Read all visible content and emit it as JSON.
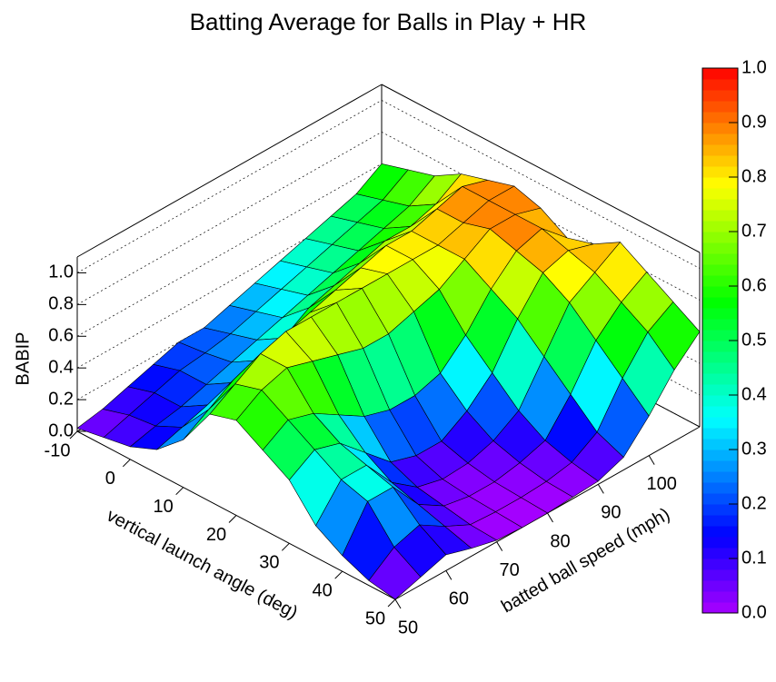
{
  "chart_data": {
    "type": "surface",
    "title": "Batting Average for Balls in Play + HR",
    "xlabel": "vertical launch angle (deg)",
    "ylabel": "batted ball speed (mph)",
    "zlabel": "BABIP",
    "x": [
      -10,
      -5,
      0,
      5,
      10,
      15,
      20,
      25,
      30,
      35,
      40,
      45,
      50
    ],
    "y": [
      50,
      55,
      60,
      65,
      70,
      75,
      80,
      85,
      90,
      95,
      100,
      105,
      110
    ],
    "z": [
      [
        0.02,
        0.05,
        0.1,
        0.15,
        0.2,
        0.2,
        0.25,
        0.3,
        0.35,
        0.4,
        0.45,
        0.5,
        0.6
      ],
      [
        0.05,
        0.1,
        0.15,
        0.2,
        0.22,
        0.25,
        0.3,
        0.35,
        0.4,
        0.45,
        0.5,
        0.55,
        0.65
      ],
      [
        0.08,
        0.12,
        0.15,
        0.2,
        0.25,
        0.3,
        0.35,
        0.4,
        0.45,
        0.5,
        0.55,
        0.6,
        0.7
      ],
      [
        0.15,
        0.2,
        0.25,
        0.3,
        0.35,
        0.4,
        0.5,
        0.55,
        0.6,
        0.65,
        0.65,
        0.7,
        0.8
      ],
      [
        0.3,
        0.4,
        0.5,
        0.55,
        0.6,
        0.65,
        0.7,
        0.75,
        0.8,
        0.8,
        0.85,
        0.9,
        0.85
      ],
      [
        0.55,
        0.65,
        0.75,
        0.8,
        0.8,
        0.8,
        0.8,
        0.8,
        0.8,
        0.8,
        0.85,
        0.9,
        0.9
      ],
      [
        0.6,
        0.7,
        0.75,
        0.7,
        0.65,
        0.6,
        0.6,
        0.65,
        0.7,
        0.8,
        0.9,
        0.9,
        0.85
      ],
      [
        0.5,
        0.6,
        0.55,
        0.45,
        0.35,
        0.3,
        0.3,
        0.35,
        0.5,
        0.7,
        0.85,
        0.9,
        0.75
      ],
      [
        0.4,
        0.5,
        0.45,
        0.3,
        0.15,
        0.1,
        0.1,
        0.2,
        0.35,
        0.6,
        0.8,
        0.85,
        0.8
      ],
      [
        0.2,
        0.4,
        0.4,
        0.2,
        0.08,
        0.04,
        0.05,
        0.1,
        0.2,
        0.45,
        0.7,
        0.8,
        0.9
      ],
      [
        0.1,
        0.35,
        0.35,
        0.15,
        0.05,
        0.02,
        0.02,
        0.05,
        0.1,
        0.3,
        0.55,
        0.7,
        0.8
      ],
      [
        0.03,
        0.15,
        0.2,
        0.1,
        0.02,
        0.01,
        0.01,
        0.02,
        0.05,
        0.15,
        0.4,
        0.6,
        0.7
      ],
      [
        0.0,
        0.05,
        0.1,
        0.05,
        0.01,
        0.0,
        0.0,
        0.01,
        0.02,
        0.08,
        0.25,
        0.45,
        0.6
      ]
    ],
    "xlim": [
      -10,
      50
    ],
    "ylim": [
      50,
      110
    ],
    "zlim": [
      0,
      1.1
    ],
    "xticks": [
      -10,
      0,
      10,
      20,
      30,
      40,
      50
    ],
    "yticks": [
      50,
      60,
      70,
      80,
      90,
      100
    ],
    "zticks": [
      {
        "value": 0,
        "label": "0.0"
      },
      {
        "value": 0.2,
        "label": "0.2"
      },
      {
        "value": 0.4,
        "label": "0.4"
      },
      {
        "value": 0.6,
        "label": "0.6"
      },
      {
        "value": 0.8,
        "label": "0.8"
      },
      {
        "value": 1,
        "label": "1.0"
      }
    ],
    "grid": true,
    "colorbar": {
      "range": [
        0,
        1
      ],
      "ticks": [
        {
          "value": 0,
          "label": "0.0"
        },
        {
          "value": 0.1,
          "label": "0.1"
        },
        {
          "value": 0.2,
          "label": "0.2"
        },
        {
          "value": 0.3,
          "label": "0.3"
        },
        {
          "value": 0.4,
          "label": "0.4"
        },
        {
          "value": 0.5,
          "label": "0.5"
        },
        {
          "value": 0.6,
          "label": "0.6"
        },
        {
          "value": 0.7,
          "label": "0.7"
        },
        {
          "value": 0.8,
          "label": "0.8"
        },
        {
          "value": 0.9,
          "label": "0.9"
        },
        {
          "value": 1,
          "label": "1.0"
        }
      ]
    }
  }
}
